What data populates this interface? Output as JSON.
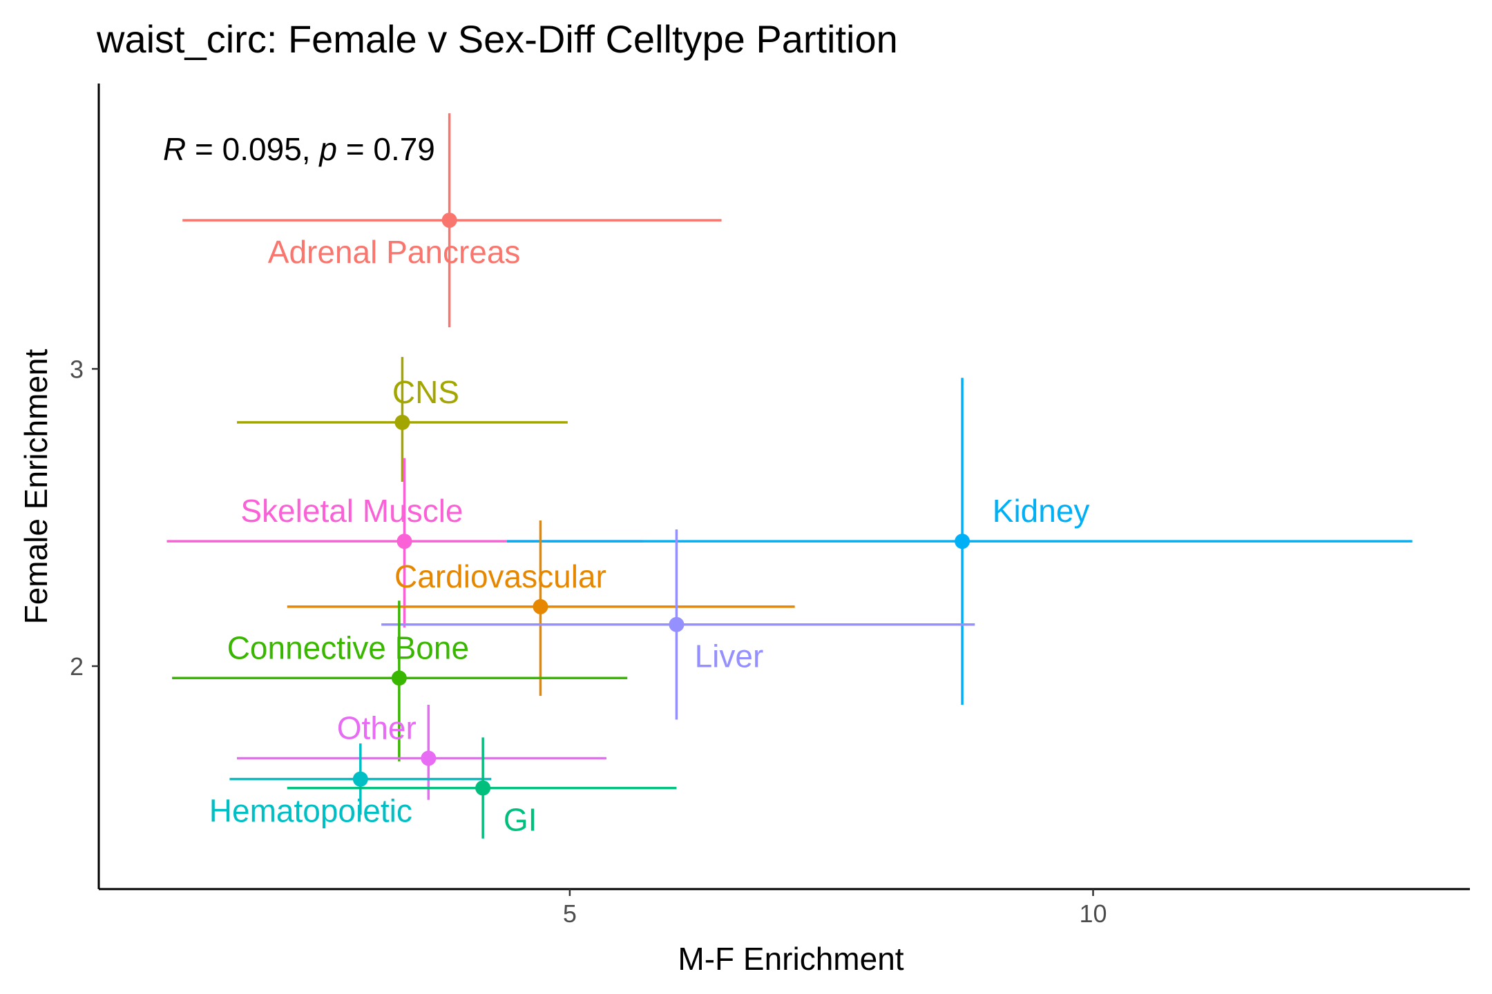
{
  "chart_data": {
    "type": "scatter",
    "title": "waist_circ: Female v Sex-Diff Celltype Partition",
    "xlabel": "M-F Enrichment",
    "ylabel": "Female Enrichment",
    "xlim": [
      0.5,
      13.6
    ],
    "ylim": [
      1.25,
      3.96
    ],
    "x_ticks": [
      5,
      10
    ],
    "y_ticks": [
      2,
      3
    ],
    "grid": false,
    "legend": "none",
    "annotation": {
      "r_symbol": "R",
      "r_text": " = 0.095, ",
      "p_symbol": "p",
      "p_text": " = 0.79"
    },
    "points": [
      {
        "label": "Adrenal Pancreas",
        "color": "#F8766D",
        "x": 3.85,
        "y": 3.5,
        "xmin": 1.3,
        "xmax": 6.45,
        "ymin": 3.14,
        "ymax": 3.86
      },
      {
        "label": "CNS",
        "color": "#A3A500",
        "x": 3.4,
        "y": 2.82,
        "xmin": 1.82,
        "xmax": 4.98,
        "ymin": 2.62,
        "ymax": 3.04
      },
      {
        "label": "Skeletal Muscle",
        "color": "#FB61D7",
        "x": 3.42,
        "y": 2.42,
        "xmin": 1.15,
        "xmax": 5.7,
        "ymin": 2.13,
        "ymax": 2.7
      },
      {
        "label": "Kidney",
        "color": "#00B0F6",
        "x": 8.75,
        "y": 2.42,
        "xmin": 4.4,
        "xmax": 13.05,
        "ymin": 1.87,
        "ymax": 2.97
      },
      {
        "label": "Cardiovascular",
        "color": "#E58700",
        "x": 4.72,
        "y": 2.2,
        "xmin": 2.3,
        "xmax": 7.15,
        "ymin": 1.9,
        "ymax": 2.49
      },
      {
        "label": "Liver",
        "color": "#9590FF",
        "x": 6.02,
        "y": 2.14,
        "xmin": 3.2,
        "xmax": 8.87,
        "ymin": 1.82,
        "ymax": 2.46
      },
      {
        "label": "Connective Bone",
        "color": "#39B600",
        "x": 3.37,
        "y": 1.96,
        "xmin": 1.2,
        "xmax": 5.55,
        "ymin": 1.68,
        "ymax": 2.22
      },
      {
        "label": "Other",
        "color": "#E76BF3",
        "x": 3.65,
        "y": 1.69,
        "xmin": 1.82,
        "xmax": 5.35,
        "ymin": 1.55,
        "ymax": 1.87
      },
      {
        "label": "Hematopoietic",
        "color": "#00BFC4",
        "x": 3.0,
        "y": 1.62,
        "xmin": 1.75,
        "xmax": 4.25,
        "ymin": 1.5,
        "ymax": 1.74
      },
      {
        "label": "GI",
        "color": "#00BF7D",
        "x": 4.17,
        "y": 1.59,
        "xmin": 2.3,
        "xmax": 6.02,
        "ymin": 1.42,
        "ymax": 1.76
      }
    ]
  }
}
